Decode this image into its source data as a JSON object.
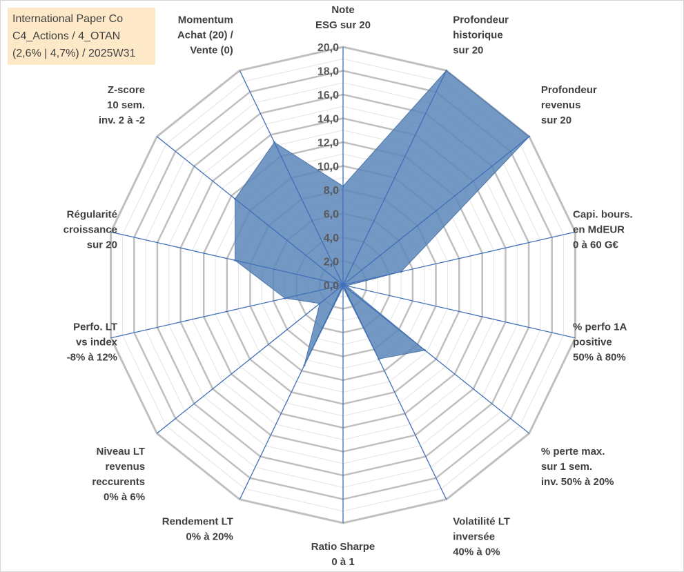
{
  "title_box": {
    "lines": [
      "International Paper Co",
      "C4_Actions / 4_OTAN",
      "(2,6% | 4,7%) / 2025W31"
    ]
  },
  "chart_data": {
    "type": "radar",
    "title": "International Paper Co",
    "rmin": 0,
    "rmax": 20,
    "tick_step": 2,
    "tick_labels": [
      "0,0",
      "2,0",
      "4,0",
      "6,0",
      "8,0",
      "10,0",
      "12,0",
      "14,0",
      "16,0",
      "18,0",
      "20,0"
    ],
    "grid": true,
    "fill_color": "#5a86b9",
    "axis_line_color": "#3f6fb8",
    "grid_color": "#bfbfbf",
    "axes": [
      {
        "label": [
          "Note",
          "ESG sur 20"
        ]
      },
      {
        "label": [
          "Profondeur",
          "historique",
          "sur 20"
        ]
      },
      {
        "label": [
          "Profondeur",
          "revenus",
          "sur 20"
        ]
      },
      {
        "label": [
          "Capi. bours.",
          "en MdEUR",
          "0 à 60 G€"
        ]
      },
      {
        "label": [
          "% perfo 1A",
          "positive",
          "50% à 80%"
        ]
      },
      {
        "label": [
          "% perte max.",
          "sur 1 sem.",
          "inv. 50% à 20%"
        ]
      },
      {
        "label": [
          "Volatilité LT",
          "inversée",
          "40% à 0%"
        ]
      },
      {
        "label": [
          "Ratio Sharpe",
          "0 à 1"
        ]
      },
      {
        "label": [
          "Rendement LT",
          "0% à 20%"
        ]
      },
      {
        "label": [
          "Niveau LT",
          "revenus",
          "reccurents",
          "0% à 6%"
        ]
      },
      {
        "label": [
          "Perfo. LT",
          "vs index",
          "-8% à 12%"
        ]
      },
      {
        "label": [
          "Régularité",
          "croissance",
          "sur 20"
        ]
      },
      {
        "label": [
          "Z-score",
          "10 sem.",
          "inv. 2 à -2"
        ]
      },
      {
        "label": [
          "Momentum",
          "Achat (20) /",
          "Vente (0)"
        ]
      }
    ],
    "values": [
      8.3,
      20.0,
      20.0,
      5.0,
      0.3,
      8.8,
      6.9,
      0.2,
      7.5,
      2.5,
      5.0,
      9.3,
      11.6,
      13.3
    ]
  }
}
